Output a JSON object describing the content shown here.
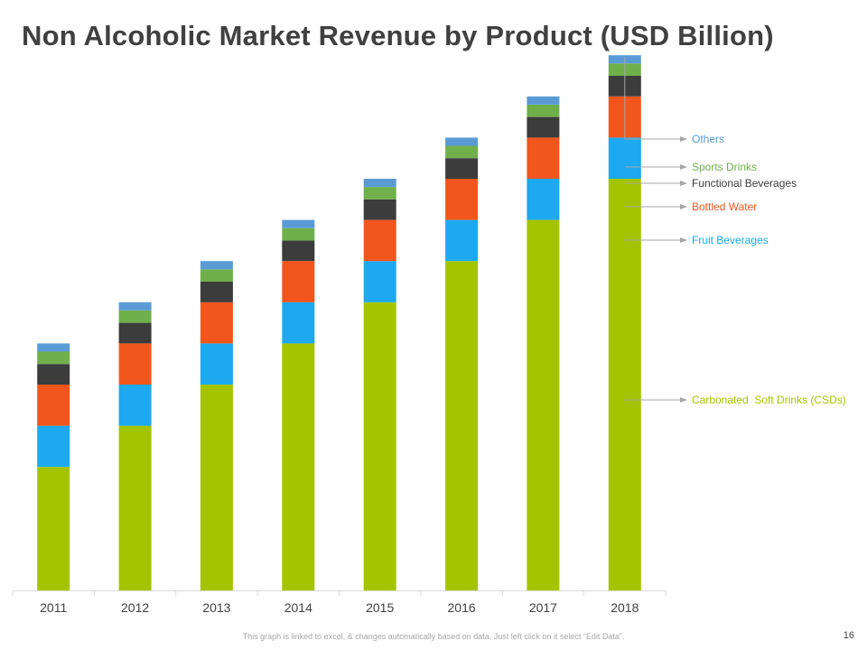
{
  "title": "Non Alcoholic Market Revenue by Product (USD Billion)",
  "footer": "This graph is linked to excel, & changes automatically based on data. Just left click on it select “Edit Data”.",
  "page_number": "16",
  "colors": {
    "csd": "#a5c400",
    "fruit": "#1ca9f0",
    "water": "#f2561d",
    "functional": "#3c3c3c",
    "sports": "#6fb04a",
    "others": "#5b9bd5",
    "axis": "#d9d9d9",
    "tick_text": "#404040",
    "arrow": "#a6a6a6"
  },
  "chart_data": {
    "type": "bar",
    "stacked": true,
    "title": "Non Alcoholic Market Revenue by Product (USD Billion)",
    "xlabel": "",
    "ylabel": "",
    "ylim": [
      0,
      100
    ],
    "grid": false,
    "legend_position": "right",
    "categories": [
      "2011",
      "2012",
      "2013",
      "2014",
      "2015",
      "2016",
      "2017",
      "2018"
    ],
    "series": [
      {
        "name": "Carbonated  Soft Drinks (CSDs)",
        "color_key": "csd",
        "values": [
          24,
          32,
          40,
          48,
          56,
          64,
          72,
          80
        ]
      },
      {
        "name": "Fruit Beverages",
        "color_key": "fruit",
        "values": [
          8,
          8,
          8,
          8,
          8,
          8,
          8,
          8
        ]
      },
      {
        "name": "Bottled Water",
        "color_key": "water",
        "values": [
          8,
          8,
          8,
          8,
          8,
          8,
          8,
          8
        ]
      },
      {
        "name": "Functional Beverages",
        "color_key": "functional",
        "values": [
          4,
          4,
          4,
          4,
          4,
          4,
          4,
          4
        ]
      },
      {
        "name": "Sports Drinks",
        "color_key": "sports",
        "values": [
          2.4,
          2.4,
          2.4,
          2.4,
          2.4,
          2.4,
          2.4,
          2.4
        ]
      },
      {
        "name": "Others",
        "color_key": "others",
        "values": [
          1.6,
          1.6,
          1.6,
          1.6,
          1.6,
          1.6,
          1.6,
          1.6
        ]
      }
    ],
    "annotations": [
      {
        "series": "Others",
        "color_key": "others"
      },
      {
        "series": "Sports Drinks",
        "color_key": "sports"
      },
      {
        "series": "Functional Beverages",
        "color_key": "functional"
      },
      {
        "series": "Bottled Water",
        "color_key": "water"
      },
      {
        "series": "Fruit Beverages",
        "color_key": "fruit"
      },
      {
        "series": "Carbonated  Soft Drinks (CSDs)",
        "color_key": "csd"
      }
    ]
  }
}
